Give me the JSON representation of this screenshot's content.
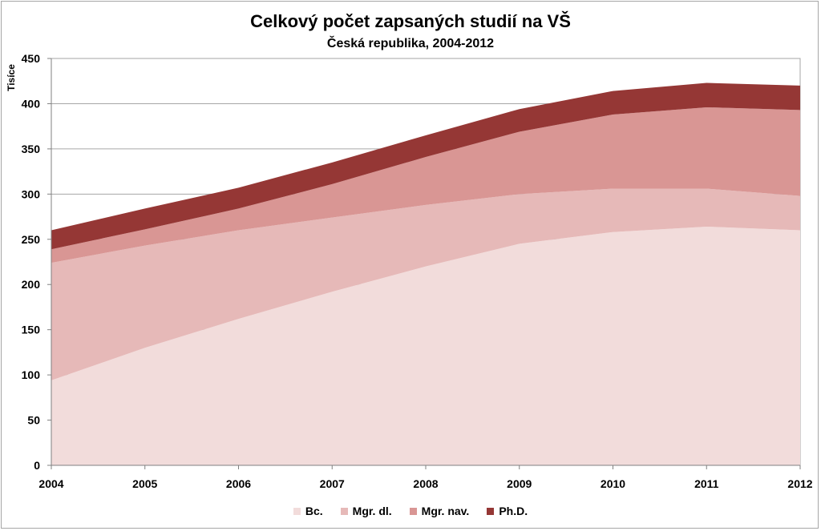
{
  "chart_data": {
    "type": "area",
    "stacked": true,
    "title": "Celkový počet zapsaných studií na VŠ",
    "subtitle": "Česká republika, 2004-2012",
    "ylabel": "Tisíce",
    "xlabel": "",
    "ylim": [
      0,
      450
    ],
    "yticks": [
      0,
      50,
      100,
      150,
      200,
      250,
      300,
      350,
      400,
      450
    ],
    "grid": true,
    "legend_position": "bottom",
    "categories": [
      "2004",
      "2005",
      "2006",
      "2007",
      "2008",
      "2009",
      "2010",
      "2011",
      "2012"
    ],
    "series": [
      {
        "name": "Bc.",
        "color": "#f2dcdb",
        "values": [
          94,
          130,
          162,
          192,
          220,
          245,
          258,
          264,
          260
        ]
      },
      {
        "name": "Mgr. dl.",
        "color": "#e6b9b8",
        "values": [
          130,
          113,
          98,
          82,
          68,
          55,
          48,
          42,
          38
        ]
      },
      {
        "name": "Mgr. nav.",
        "color": "#d99694",
        "values": [
          15,
          18,
          24,
          37,
          53,
          69,
          82,
          90,
          95
        ]
      },
      {
        "name": "Ph.D.",
        "color": "#953735",
        "values": [
          21,
          23,
          23,
          24,
          24,
          25,
          26,
          27,
          27
        ]
      }
    ]
  }
}
